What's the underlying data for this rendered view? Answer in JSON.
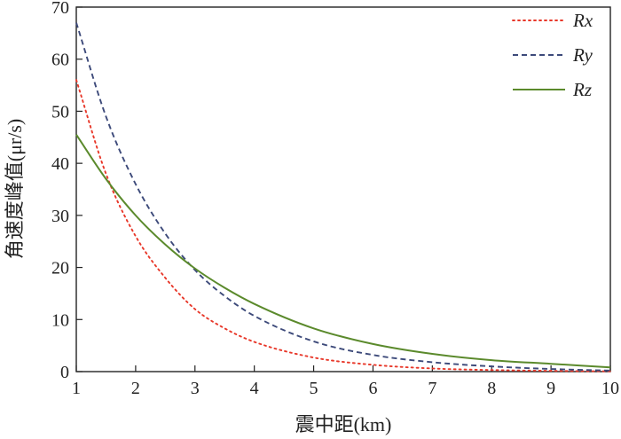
{
  "chart_data": {
    "type": "line",
    "title": "",
    "xlabel": "震中距(km)",
    "ylabel": "角速度峰值(μr/s)",
    "xlim": [
      1,
      10
    ],
    "ylim": [
      0,
      70
    ],
    "xticks": [
      1,
      2,
      3,
      4,
      5,
      6,
      7,
      8,
      9,
      10
    ],
    "yticks": [
      0,
      10,
      20,
      30,
      40,
      50,
      60,
      70
    ],
    "grid": false,
    "legend_position": "top-right",
    "series": [
      {
        "name": "Rx",
        "color": "#e8382a",
        "style": "dotted",
        "x": [
          1,
          1.5,
          2,
          2.5,
          3,
          3.5,
          4,
          5,
          6,
          7,
          8,
          9,
          10
        ],
        "y": [
          56,
          38,
          26,
          18,
          12,
          8.3,
          5.7,
          2.7,
          1.3,
          0.6,
          0.3,
          0.15,
          0.05
        ]
      },
      {
        "name": "Ry",
        "color": "#3d4a7a",
        "style": "dashed",
        "x": [
          1,
          1.5,
          2,
          2.5,
          3,
          3.5,
          4,
          5,
          6,
          7,
          8,
          9,
          10
        ],
        "y": [
          67,
          49,
          36,
          26.5,
          19.5,
          14.5,
          10.7,
          5.8,
          3.2,
          1.8,
          1.0,
          0.5,
          0.2
        ]
      },
      {
        "name": "Rz",
        "color": "#5b8a2c",
        "style": "solid",
        "x": [
          1,
          1.5,
          2,
          2.5,
          3,
          3.5,
          4,
          5,
          6,
          7,
          8,
          9,
          10
        ],
        "y": [
          45.5,
          37,
          30,
          24.4,
          19.8,
          16.1,
          13,
          8.3,
          5.3,
          3.4,
          2.2,
          1.5,
          0.8
        ]
      }
    ]
  }
}
